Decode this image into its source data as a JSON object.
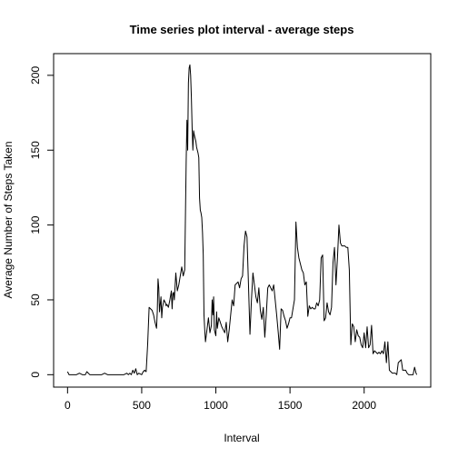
{
  "chart_data": {
    "type": "line",
    "title": "Time series plot interval - average steps",
    "xlabel": "Interval",
    "ylabel": "Average Number of Steps Taken",
    "xlim": [
      -94,
      2449
    ],
    "ylim": [
      -8.3,
      214.5
    ],
    "xticks": [
      0,
      500,
      1000,
      1500,
      2000
    ],
    "yticks": [
      0,
      50,
      100,
      150,
      200
    ],
    "grid": false,
    "legend": "none",
    "series": [
      {
        "color": "#000000",
        "x": [
          0,
          10,
          20,
          40,
          60,
          80,
          100,
          120,
          130,
          150,
          170,
          200,
          230,
          250,
          270,
          300,
          330,
          360,
          380,
          400,
          410,
          420,
          430,
          440,
          450,
          460,
          470,
          480,
          500,
          510,
          520,
          530,
          540,
          550,
          560,
          570,
          580,
          590,
          600,
          605,
          610,
          615,
          620,
          630,
          635,
          640,
          650,
          660,
          665,
          670,
          680,
          690,
          700,
          705,
          710,
          715,
          720,
          730,
          740,
          750,
          760,
          770,
          780,
          790,
          800,
          805,
          810,
          815,
          820,
          825,
          830,
          835,
          840,
          845,
          850,
          855,
          860,
          865,
          870,
          875,
          880,
          885,
          890,
          895,
          900,
          905,
          910,
          915,
          920,
          925,
          930,
          940,
          950,
          960,
          970,
          975,
          980,
          985,
          990,
          995,
          1000,
          1005,
          1010,
          1020,
          1030,
          1040,
          1050,
          1060,
          1070,
          1080,
          1090,
          1100,
          1110,
          1120,
          1130,
          1140,
          1150,
          1160,
          1170,
          1180,
          1190,
          1200,
          1210,
          1220,
          1230,
          1240,
          1250,
          1260,
          1270,
          1280,
          1290,
          1300,
          1310,
          1320,
          1330,
          1340,
          1350,
          1360,
          1370,
          1380,
          1390,
          1400,
          1410,
          1420,
          1430,
          1440,
          1450,
          1460,
          1470,
          1480,
          1490,
          1500,
          1510,
          1520,
          1530,
          1540,
          1550,
          1560,
          1570,
          1580,
          1590,
          1600,
          1610,
          1620,
          1630,
          1640,
          1650,
          1660,
          1670,
          1680,
          1690,
          1700,
          1710,
          1720,
          1730,
          1740,
          1750,
          1760,
          1770,
          1780,
          1790,
          1800,
          1810,
          1820,
          1830,
          1840,
          1850,
          1860,
          1870,
          1880,
          1890,
          1900,
          1910,
          1920,
          1930,
          1940,
          1950,
          1960,
          1970,
          1980,
          1990,
          2000,
          2010,
          2020,
          2030,
          2040,
          2050,
          2060,
          2070,
          2080,
          2090,
          2100,
          2110,
          2120,
          2130,
          2140,
          2150,
          2160,
          2170,
          2180,
          2190,
          2200,
          2210,
          2220,
          2230,
          2240,
          2250,
          2260,
          2270,
          2280,
          2290,
          2300,
          2310,
          2320,
          2330,
          2340,
          2350,
          2355
        ],
        "y": [
          2,
          0,
          0,
          0,
          0,
          1,
          0,
          0,
          2,
          0,
          0,
          0,
          0,
          1,
          0,
          0,
          0,
          0,
          0,
          1,
          0,
          1,
          0,
          3,
          1,
          4,
          0,
          1,
          0,
          2,
          3,
          2,
          20,
          45,
          44,
          43,
          40,
          35,
          31,
          42,
          64,
          58,
          42,
          52,
          38,
          45,
          50,
          48,
          46,
          47,
          45,
          50,
          56,
          44,
          54,
          55,
          50,
          68,
          56,
          60,
          66,
          72,
          66,
          70,
          143,
          170,
          150,
          195,
          205,
          207,
          200,
          185,
          165,
          150,
          163,
          160,
          158,
          156,
          152,
          150,
          148,
          145,
          118,
          110,
          108,
          105,
          95,
          80,
          40,
          30,
          22,
          30,
          38,
          28,
          33,
          50,
          40,
          52,
          30,
          28,
          26,
          42,
          31,
          38,
          35,
          32,
          30,
          28,
          35,
          22,
          30,
          40,
          50,
          46,
          60,
          61,
          62,
          58,
          64,
          66,
          86,
          96,
          92,
          60,
          27,
          50,
          68,
          60,
          52,
          48,
          58,
          43,
          37,
          45,
          25,
          40,
          58,
          60,
          58,
          56,
          60,
          50,
          40,
          29,
          17,
          44,
          43,
          39,
          36,
          31,
          34,
          38,
          38,
          44,
          50,
          102,
          85,
          78,
          74,
          70,
          68,
          60,
          62,
          39,
          46,
          44,
          45,
          44,
          44,
          48,
          46,
          50,
          78,
          80,
          36,
          38,
          48,
          42,
          40,
          45,
          75,
          85,
          60,
          78,
          100,
          88,
          86,
          86,
          86,
          85,
          85,
          70,
          20,
          34,
          32,
          22,
          30,
          26,
          25,
          20,
          18,
          28,
          18,
          32,
          18,
          20,
          33,
          14,
          16,
          15,
          14,
          15,
          14,
          16,
          14,
          22,
          8,
          22,
          3,
          2,
          1,
          1,
          1,
          0,
          8,
          9,
          10,
          3,
          3,
          3,
          1,
          0,
          0,
          0,
          0,
          5,
          1,
          0
        ]
      }
    ]
  }
}
